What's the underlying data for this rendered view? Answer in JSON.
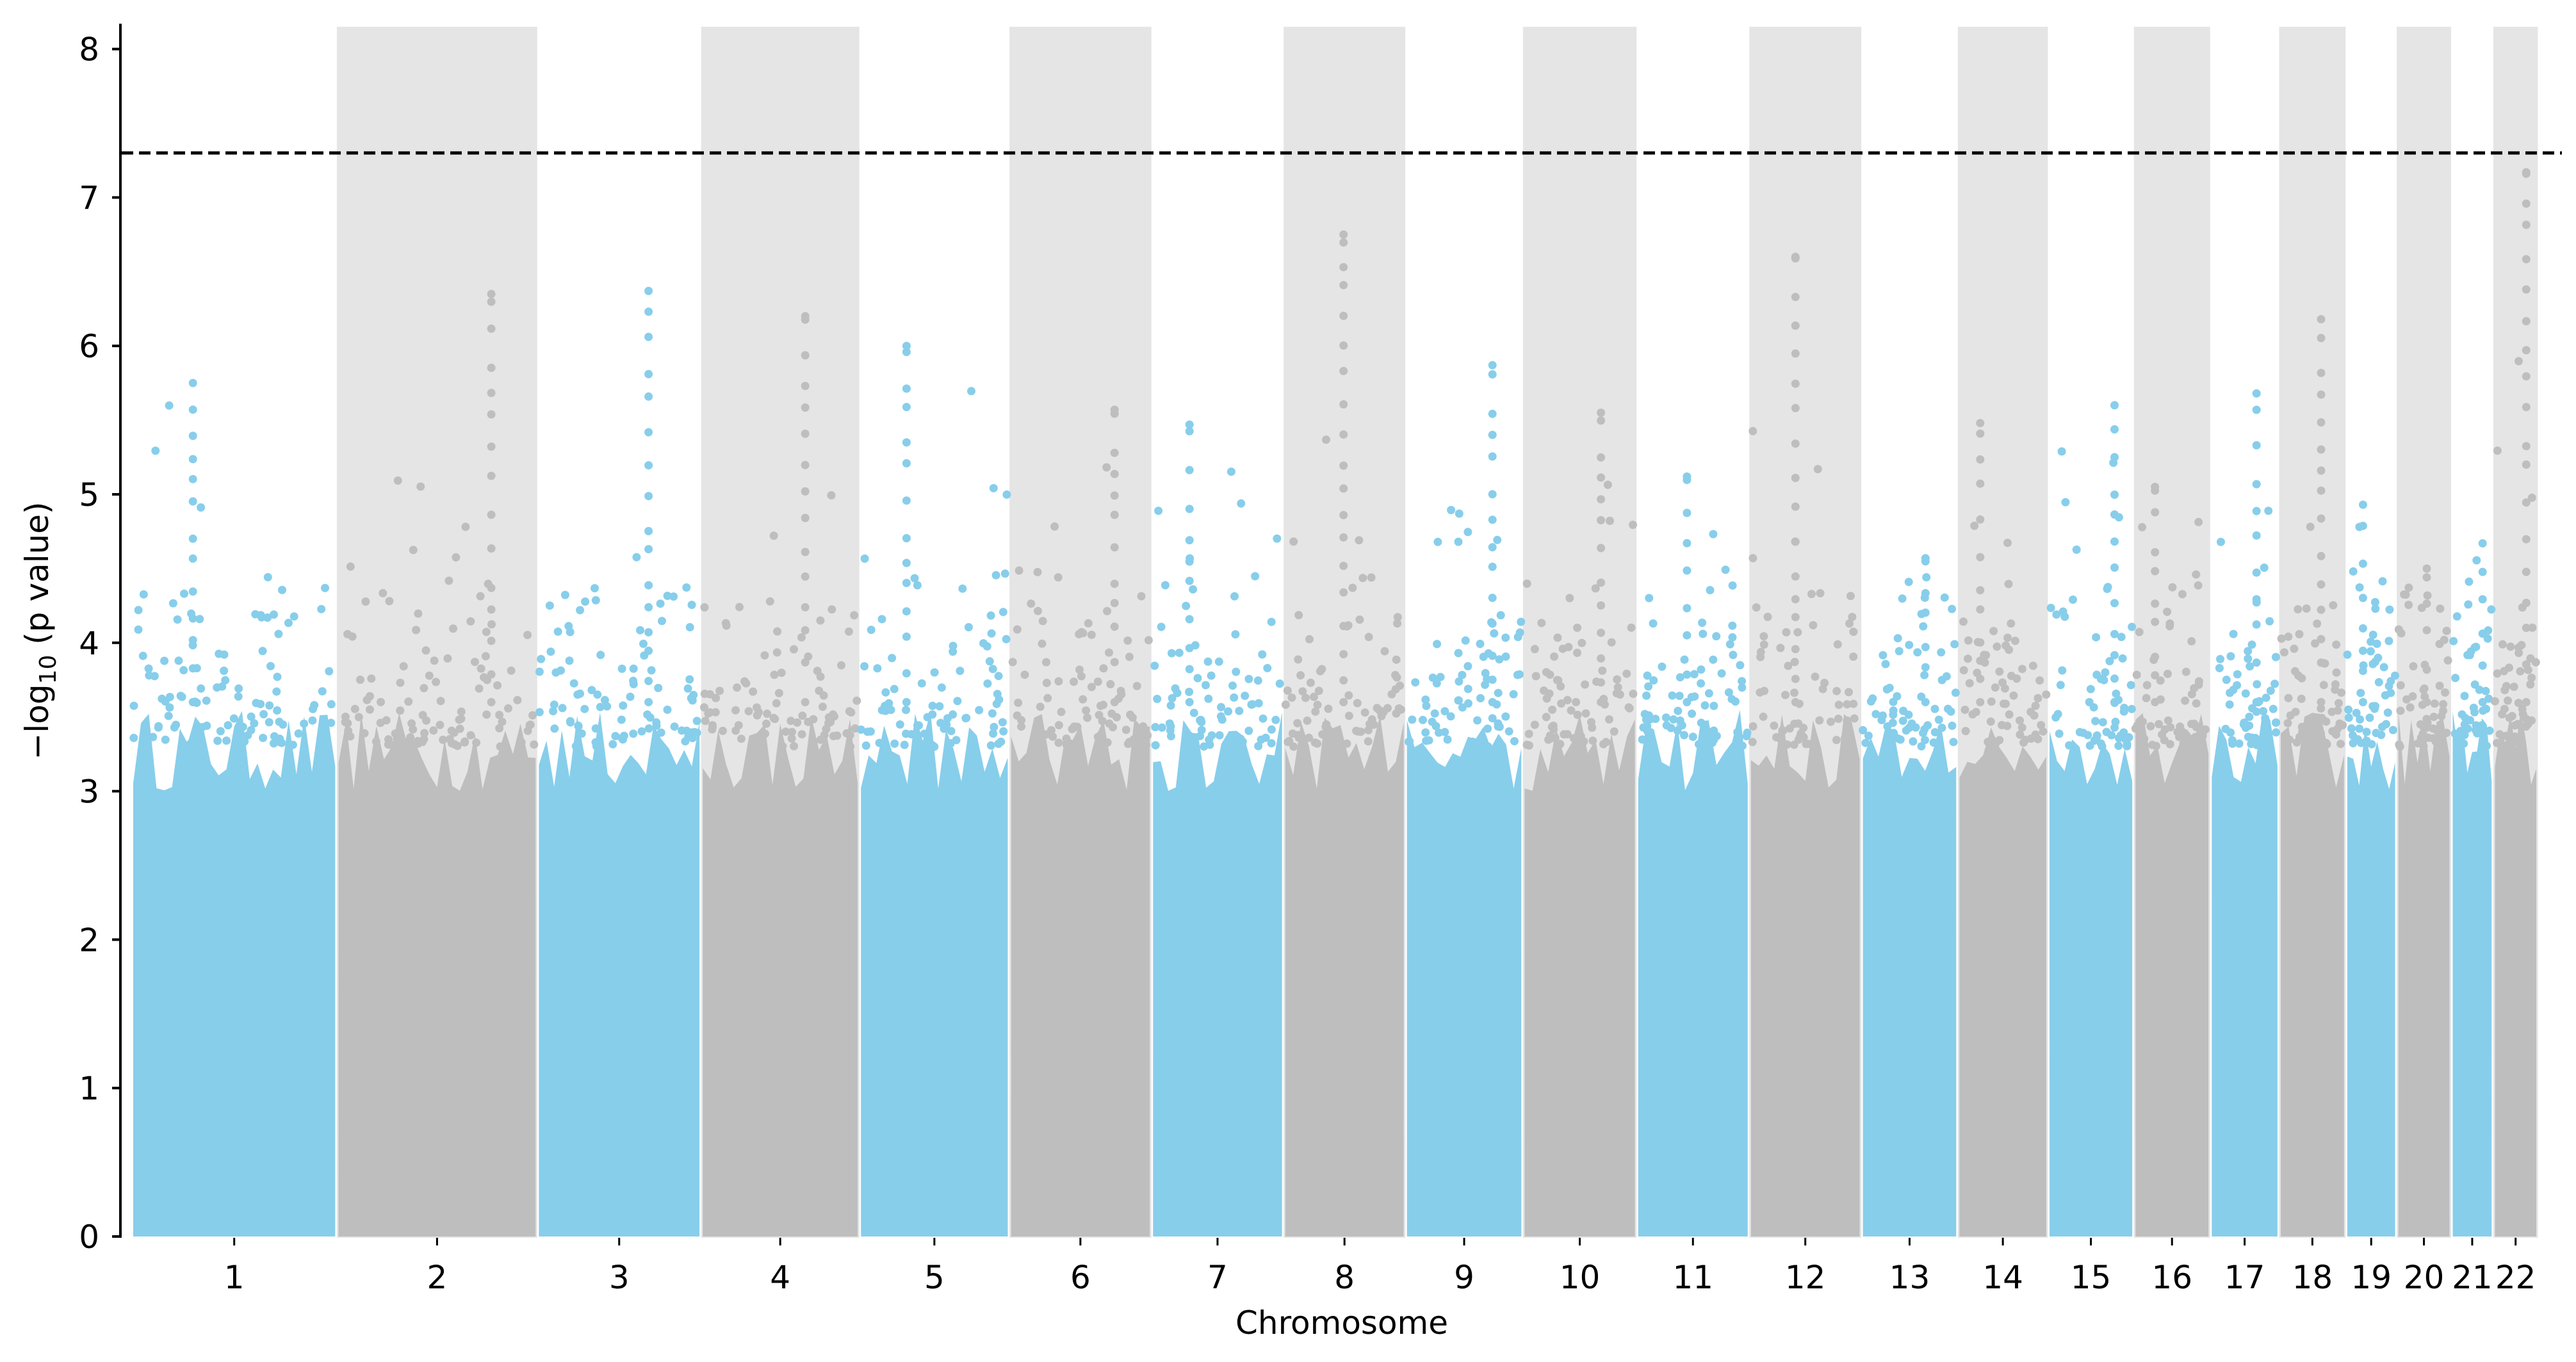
{
  "chart_data": {
    "type": "scatter",
    "subtype": "manhattan",
    "title": "",
    "xlabel": "Chromosome",
    "ylabel_main": "−log",
    "ylabel_sub": "10",
    "ylabel_rest": " (p value)",
    "ylim": [
      0,
      8.15
    ],
    "yticks": [
      "0",
      "1",
      "2",
      "3",
      "4",
      "5",
      "6",
      "7",
      "8"
    ],
    "threshold": 7.3,
    "grid": false,
    "colors": {
      "odd": "#87CEEB",
      "even": "#BEBEBE",
      "band": "#E5E5E5",
      "threshold": "#000000"
    },
    "chromosomes": [
      {
        "label": "1",
        "length_mb": 249,
        "peak": 5.75
      },
      {
        "label": "2",
        "length_mb": 243,
        "peak": 6.35
      },
      {
        "label": "3",
        "length_mb": 198,
        "peak": 6.37
      },
      {
        "label": "4",
        "length_mb": 191,
        "peak": 6.2
      },
      {
        "label": "5",
        "length_mb": 181,
        "peak": 6.0
      },
      {
        "label": "6",
        "length_mb": 171,
        "peak": 5.57
      },
      {
        "label": "7",
        "length_mb": 159,
        "peak": 5.47
      },
      {
        "label": "8",
        "length_mb": 146,
        "peak": 6.75
      },
      {
        "label": "9",
        "length_mb": 141,
        "peak": 5.87
      },
      {
        "label": "10",
        "length_mb": 136,
        "peak": 5.55
      },
      {
        "label": "11",
        "length_mb": 135,
        "peak": 5.12
      },
      {
        "label": "12",
        "length_mb": 134,
        "peak": 6.6
      },
      {
        "label": "13",
        "length_mb": 115,
        "peak": 4.57
      },
      {
        "label": "14",
        "length_mb": 107,
        "peak": 5.48
      },
      {
        "label": "15",
        "length_mb": 102,
        "peak": 5.6
      },
      {
        "label": "16",
        "length_mb": 90,
        "peak": 5.05
      },
      {
        "label": "17",
        "length_mb": 81,
        "peak": 5.68
      },
      {
        "label": "18",
        "length_mb": 78,
        "peak": 6.18
      },
      {
        "label": "19",
        "length_mb": 59,
        "peak": 4.93
      },
      {
        "label": "20",
        "length_mb": 63,
        "peak": 4.5
      },
      {
        "label": "21",
        "length_mb": 48,
        "peak": 4.67
      },
      {
        "label": "22",
        "length_mb": 51,
        "peak": 7.17
      }
    ]
  }
}
